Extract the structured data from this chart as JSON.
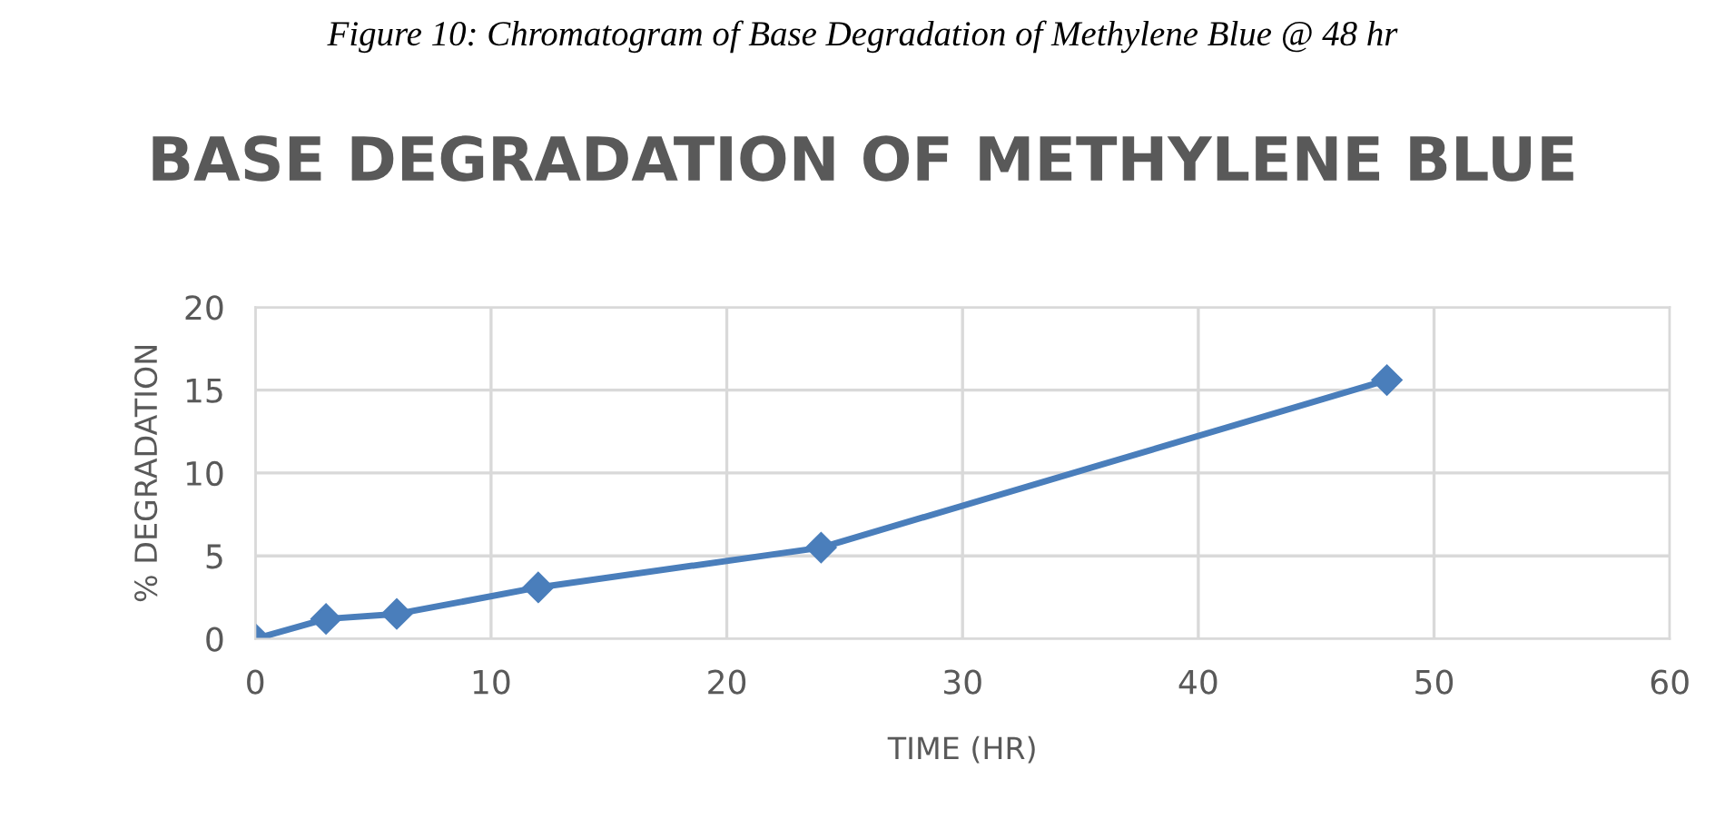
{
  "chart_data": {
    "type": "line",
    "title": "BASE DEGRADATION OF METHYLENE BLUE",
    "xlabel": "TIME (HR)",
    "ylabel": "% DEGRADATION",
    "annotations": [
      "Figure 10: Chromatogram of Base Degradation of Methylene Blue @ 48 hr"
    ],
    "x": [
      0,
      3,
      6,
      12,
      24,
      48
    ],
    "series": [
      {
        "color": "#4a7ebb",
        "values": [
          0,
          1.2,
          1.5,
          3.1,
          5.5,
          15.6
        ]
      }
    ],
    "xlim": [
      0,
      60
    ],
    "xticks": [
      0,
      10,
      20,
      30,
      40,
      50,
      60
    ],
    "ylim": [
      0,
      20
    ],
    "yticks": [
      0,
      5,
      10,
      15,
      20
    ],
    "grid": true,
    "marker": "diamond",
    "line_style": "solid",
    "legend": false
  }
}
